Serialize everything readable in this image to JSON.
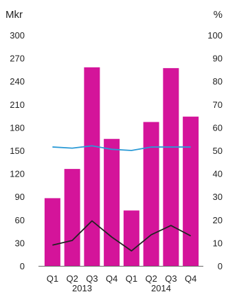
{
  "chart_data": {
    "type": "bar",
    "title": "",
    "left_axis_unit": "Mkr",
    "right_axis_unit": "%",
    "left_ylim": [
      0,
      300
    ],
    "left_ticks": [
      "0",
      "30",
      "60",
      "90",
      "120",
      "150",
      "180",
      "210",
      "240",
      "270",
      "300"
    ],
    "right_ylim": [
      0,
      100
    ],
    "right_ticks": [
      "0",
      "10",
      "20",
      "30",
      "40",
      "50",
      "60",
      "70",
      "80",
      "90",
      "100"
    ],
    "categories": [
      "Q1",
      "Q2",
      "Q3",
      "Q4",
      "Q1",
      "Q2",
      "Q3",
      "Q4"
    ],
    "year_groups": [
      {
        "label": "2013",
        "start": 0,
        "end": 3
      },
      {
        "label": "2014",
        "start": 4,
        "end": 7
      }
    ],
    "grid": false,
    "series": [
      {
        "kind": "bar",
        "axis": "left",
        "color": "#d4149a",
        "values": [
          88,
          126,
          258,
          165,
          72,
          187,
          257,
          194
        ]
      },
      {
        "kind": "line",
        "axis": "right",
        "color": "#2a9ad6",
        "values": [
          51.5,
          51,
          52,
          50.5,
          50,
          51.5,
          51.5,
          51.5
        ]
      },
      {
        "kind": "line",
        "axis": "right",
        "color": "#222222",
        "values": [
          9,
          11,
          19.5,
          12.5,
          6.5,
          13.5,
          17.5,
          13
        ]
      }
    ]
  }
}
